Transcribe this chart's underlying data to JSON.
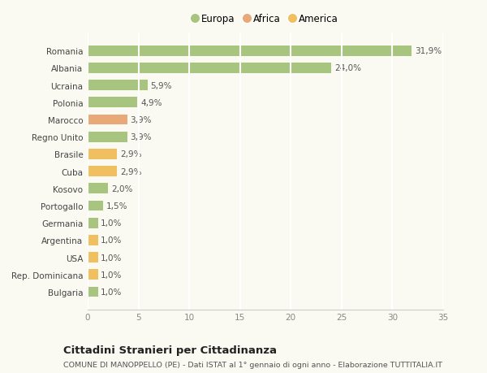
{
  "categories": [
    "Bulgaria",
    "Rep. Dominicana",
    "USA",
    "Argentina",
    "Germania",
    "Portogallo",
    "Kosovo",
    "Cuba",
    "Brasile",
    "Regno Unito",
    "Marocco",
    "Polonia",
    "Ucraina",
    "Albania",
    "Romania"
  ],
  "values": [
    1.0,
    1.0,
    1.0,
    1.0,
    1.0,
    1.5,
    2.0,
    2.9,
    2.9,
    3.9,
    3.9,
    4.9,
    5.9,
    24.0,
    31.9
  ],
  "labels": [
    "1,0%",
    "1,0%",
    "1,0%",
    "1,0%",
    "1,0%",
    "1,5%",
    "2,0%",
    "2,9%",
    "2,9%",
    "3,9%",
    "3,9%",
    "4,9%",
    "5,9%",
    "24,0%",
    "31,9%"
  ],
  "colors": [
    "#a8c580",
    "#f0c060",
    "#f0c060",
    "#f0c060",
    "#a8c580",
    "#a8c580",
    "#a8c580",
    "#f0c060",
    "#f0c060",
    "#a8c580",
    "#e8a878",
    "#a8c580",
    "#a8c580",
    "#a8c580",
    "#a8c580"
  ],
  "legend": [
    {
      "label": "Europa",
      "color": "#a8c580"
    },
    {
      "label": "Africa",
      "color": "#e8a878"
    },
    {
      "label": "America",
      "color": "#f0c060"
    }
  ],
  "xlim": [
    0,
    35
  ],
  "xticks": [
    0,
    5,
    10,
    15,
    20,
    25,
    30,
    35
  ],
  "title": "Cittadini Stranieri per Cittadinanza",
  "subtitle": "COMUNE DI MANOPPELLO (PE) - Dati ISTAT al 1° gennaio di ogni anno - Elaborazione TUTTITALIA.IT",
  "bg_color": "#fafaf2",
  "grid_color": "#ffffff",
  "bar_height": 0.6
}
